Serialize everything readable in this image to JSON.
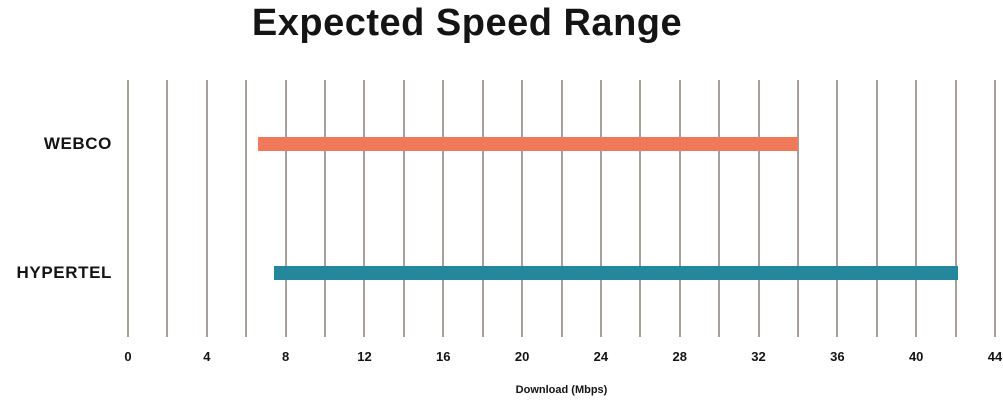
{
  "chart_data": {
    "type": "bar",
    "orientation": "horizontal-range",
    "title": "Expected Speed Range",
    "xlabel": "Download (Mbps)",
    "xlim": [
      0,
      44
    ],
    "x_ticks": [
      0,
      4,
      8,
      12,
      16,
      20,
      24,
      28,
      32,
      36,
      40,
      44
    ],
    "gridline_step": 2,
    "grid": true,
    "legend": false,
    "categories": [
      "WEBCO",
      "HYPERTEL"
    ],
    "series": [
      {
        "name": "WEBCO",
        "range_min": 6.6,
        "range_max": 34,
        "color": "#f0795a"
      },
      {
        "name": "HYPERTEL",
        "range_min": 7.4,
        "range_max": 42.1,
        "color": "#25879b"
      }
    ],
    "colors": {
      "gridline": "#a5a09a",
      "text": "#141414",
      "background": "#ffffff"
    }
  }
}
